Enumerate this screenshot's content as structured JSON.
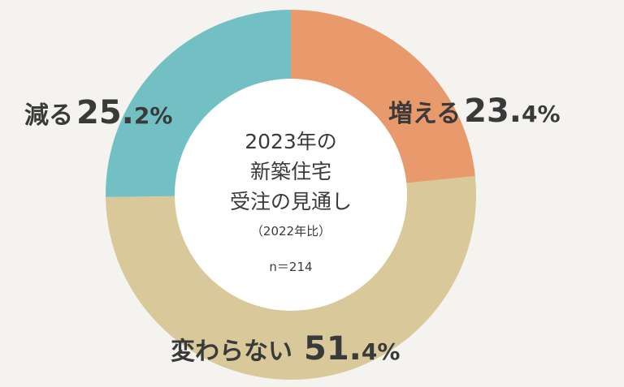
{
  "chart_data": {
    "type": "pie",
    "style": "donut",
    "title_lines": [
      "2023年の",
      "新築住宅",
      "受注の見通し"
    ],
    "subtitle": "（2022年比）",
    "sample": "n＝214",
    "slices": [
      {
        "label": "増える",
        "value": 23.4,
        "int_part": "23.",
        "dec_part": "4%",
        "color": "#e89a6c"
      },
      {
        "label": "変わらない",
        "value": 51.4,
        "int_part": "51.",
        "dec_part": "4%",
        "color": "#d9c99a"
      },
      {
        "label": "減る",
        "value": 25.2,
        "int_part": "25.",
        "dec_part": "2%",
        "color": "#72c0c4"
      }
    ]
  }
}
